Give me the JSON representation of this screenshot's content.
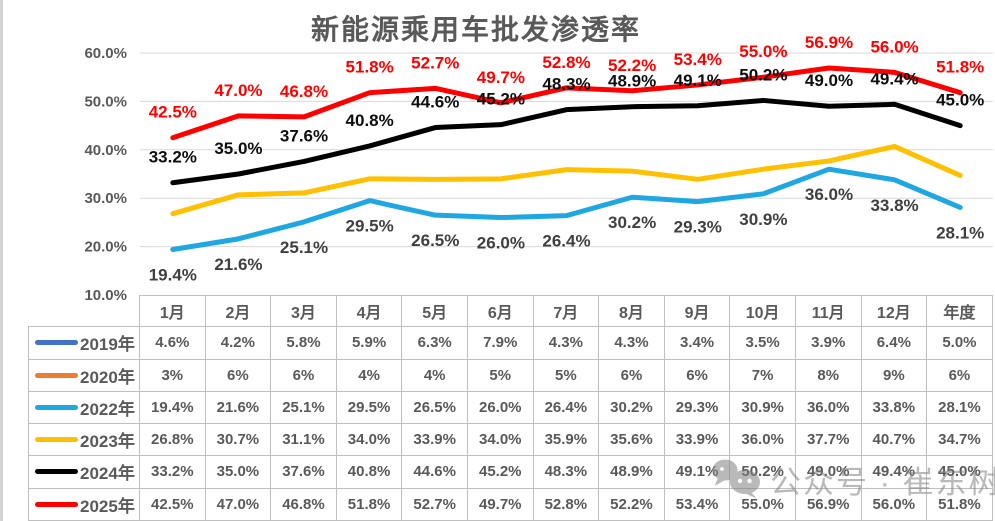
{
  "chart_data": {
    "type": "line",
    "title": "新能源乘用车批发渗透率",
    "categories": [
      "1月",
      "2月",
      "3月",
      "4月",
      "5月",
      "6月",
      "7月",
      "8月",
      "9月",
      "10月",
      "11月",
      "12月",
      "年度"
    ],
    "xlabel": "",
    "ylabel": "",
    "ylim": [
      10,
      60
    ],
    "grid": true,
    "legend_position": "left-column-of-data-table",
    "y_ticks": [
      {
        "value": 60,
        "label": "60.0%"
      },
      {
        "value": 50,
        "label": "50.0%"
      },
      {
        "value": 40,
        "label": "40.0%"
      },
      {
        "value": 30,
        "label": "30.0%"
      },
      {
        "value": 20,
        "label": "20.0%"
      },
      {
        "value": 10,
        "label": "10.0%"
      }
    ],
    "series": [
      {
        "name": "2019年",
        "color": "#4472C4",
        "plotted": false,
        "labels_on_chart": false,
        "label_color": "",
        "label_side": "",
        "values": [
          4.6,
          4.2,
          5.8,
          5.9,
          6.3,
          7.9,
          4.3,
          4.3,
          3.4,
          3.5,
          3.9,
          6.4,
          5.0
        ],
        "display": [
          "4.6%",
          "4.2%",
          "5.8%",
          "5.9%",
          "6.3%",
          "7.9%",
          "4.3%",
          "4.3%",
          "3.4%",
          "3.5%",
          "3.9%",
          "6.4%",
          "5.0%"
        ]
      },
      {
        "name": "2020年",
        "color": "#ED7D31",
        "plotted": false,
        "labels_on_chart": false,
        "label_color": "",
        "label_side": "",
        "values": [
          3,
          6,
          6,
          4,
          4,
          5,
          5,
          6,
          6,
          7,
          8,
          9,
          6
        ],
        "display": [
          "3%",
          "6%",
          "6%",
          "4%",
          "4%",
          "5%",
          "5%",
          "6%",
          "6%",
          "7%",
          "8%",
          "9%",
          "6%"
        ]
      },
      {
        "name": "2022年",
        "color": "#1EA7E1",
        "plotted": true,
        "labels_on_chart": true,
        "label_color": "#3F3F3F",
        "label_side": "below",
        "values": [
          19.4,
          21.6,
          25.1,
          29.5,
          26.5,
          26.0,
          26.4,
          30.2,
          29.3,
          30.9,
          36.0,
          33.8,
          28.1
        ],
        "display": [
          "19.4%",
          "21.6%",
          "25.1%",
          "29.5%",
          "26.5%",
          "26.0%",
          "26.4%",
          "30.2%",
          "29.3%",
          "30.9%",
          "36.0%",
          "33.8%",
          "28.1%"
        ]
      },
      {
        "name": "2023年",
        "color": "#FFC000",
        "plotted": true,
        "labels_on_chart": false,
        "label_color": "",
        "label_side": "",
        "values": [
          26.8,
          30.7,
          31.1,
          34.0,
          33.9,
          34.0,
          35.9,
          35.6,
          33.9,
          36.0,
          37.7,
          40.7,
          34.7
        ],
        "display": [
          "26.8%",
          "30.7%",
          "31.1%",
          "34.0%",
          "33.9%",
          "34.0%",
          "35.9%",
          "35.6%",
          "33.9%",
          "36.0%",
          "37.7%",
          "40.7%",
          "34.7%"
        ]
      },
      {
        "name": "2024年",
        "color": "#000000",
        "plotted": true,
        "labels_on_chart": true,
        "label_color": "#0D0D0D",
        "label_side": "above",
        "values": [
          33.2,
          35.0,
          37.6,
          40.8,
          44.6,
          45.2,
          48.3,
          48.9,
          49.1,
          50.2,
          49.0,
          49.4,
          45.0
        ],
        "display": [
          "33.2%",
          "35.0%",
          "37.6%",
          "40.8%",
          "44.6%",
          "45.2%",
          "48.3%",
          "48.9%",
          "49.1%",
          "50.2%",
          "49.0%",
          "49.4%",
          "45.0%"
        ]
      },
      {
        "name": "2025年",
        "color": "#FF0000",
        "plotted": true,
        "labels_on_chart": true,
        "label_color": "#FF0000",
        "label_side": "above",
        "values": [
          42.5,
          47.0,
          46.8,
          51.8,
          52.7,
          49.7,
          52.8,
          52.2,
          53.4,
          55.0,
          56.9,
          56.0,
          51.8
        ],
        "display": [
          "42.5%",
          "47.0%",
          "46.8%",
          "51.8%",
          "52.7%",
          "49.7%",
          "52.8%",
          "52.2%",
          "53.4%",
          "55.0%",
          "56.9%",
          "56.0%",
          "51.8%"
        ]
      }
    ]
  },
  "watermark": {
    "icon": "wechat-icon",
    "label": "公众号 · 崔东树"
  }
}
